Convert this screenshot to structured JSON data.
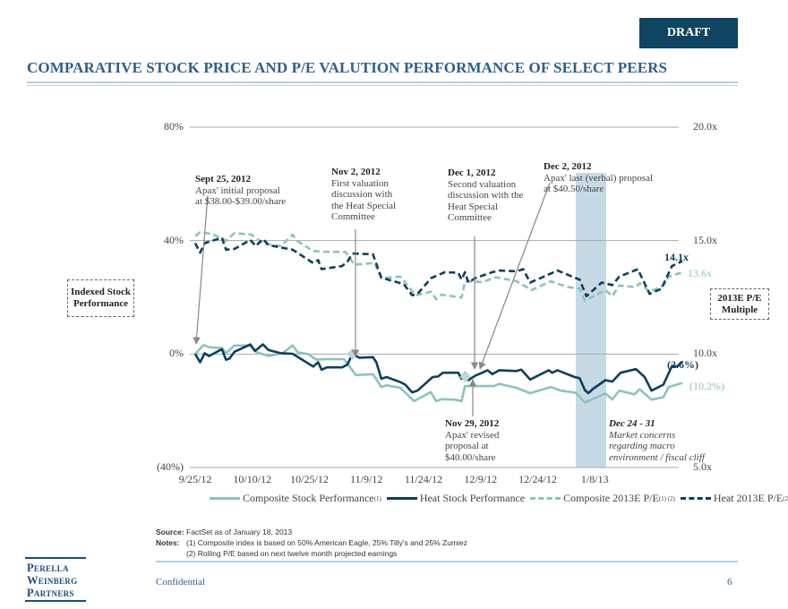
{
  "header": {
    "draft_label": "DRAFT",
    "title": "COMPARATIVE STOCK PRICE AND P/E VALUTION PERFORMANCE OF SELECT PEERS"
  },
  "colors": {
    "heat": "#0d3f5c",
    "composite": "#8cc3be",
    "shade": "#c6dae5",
    "title": "#2e5f8e"
  },
  "chart_data": {
    "type": "line",
    "xlabel": "",
    "left_ylabel": "Indexed Stock Performance",
    "right_ylabel": "2013E P/E Multiple",
    "x_units": "days since 9/25/12 (approx.)",
    "xlim": [
      0,
      128
    ],
    "x_ticks": [
      {
        "x": 0,
        "label": "9/25/12"
      },
      {
        "x": 15,
        "label": "10/10/12"
      },
      {
        "x": 30,
        "label": "10/25/12"
      },
      {
        "x": 45,
        "label": "11/9/12"
      },
      {
        "x": 60,
        "label": "11/24/12"
      },
      {
        "x": 75,
        "label": "12/9/12"
      },
      {
        "x": 90,
        "label": "12/24/12"
      },
      {
        "x": 105,
        "label": "1/8/13"
      }
    ],
    "left_axis": {
      "ylim": [
        -40,
        80
      ],
      "ticks": [
        {
          "v": 80,
          "label": "80%"
        },
        {
          "v": 40,
          "label": "40%"
        },
        {
          "v": 0,
          "label": "0%"
        },
        {
          "v": -40,
          "label": "(40%)"
        }
      ]
    },
    "right_axis": {
      "ylim": [
        5,
        20
      ],
      "ticks": [
        {
          "v": 20,
          "label": "20.0x"
        },
        {
          "v": 15,
          "label": "15.0x"
        },
        {
          "v": 10,
          "label": "10.0x"
        },
        {
          "v": 5,
          "label": "5.0x"
        }
      ]
    },
    "grid": "horizontal",
    "shaded_period": {
      "x": [
        100,
        108
      ],
      "label": "Dec 24 - 31"
    },
    "series": [
      {
        "name": "Composite Stock Performance",
        "axis": "left",
        "style": "solid",
        "color": "#8cc3be",
        "end_label": "(10.2%)",
        "points": [
          [
            0,
            0
          ],
          [
            2.2,
            3.2
          ],
          [
            3.6,
            2.4
          ],
          [
            7,
            2.1
          ],
          [
            8.1,
            0.3
          ],
          [
            10.3,
            3
          ],
          [
            14.4,
            3
          ],
          [
            16.2,
            0.6
          ],
          [
            19.3,
            -0.7
          ],
          [
            22.9,
            0.3
          ],
          [
            25.6,
            3
          ],
          [
            26.9,
            0.6
          ],
          [
            29.6,
            0
          ],
          [
            31.9,
            -2
          ],
          [
            34.1,
            -1.8
          ],
          [
            39.1,
            -1.8
          ],
          [
            42.2,
            -7.4
          ],
          [
            46.7,
            -7.1
          ],
          [
            48.9,
            -11.6
          ],
          [
            50.3,
            -11
          ],
          [
            53.9,
            -11.9
          ],
          [
            57.5,
            -16.6
          ],
          [
            61.9,
            -13.4
          ],
          [
            63.3,
            -16.6
          ],
          [
            64.7,
            -15.9
          ],
          [
            68.3,
            -16.1
          ],
          [
            70,
            -16.6
          ],
          [
            70.9,
            -11.3
          ],
          [
            72.7,
            -11.3
          ],
          [
            78.5,
            -11.3
          ],
          [
            79.9,
            -10.5
          ],
          [
            84.4,
            -11.9
          ],
          [
            88,
            -13.8
          ],
          [
            93.4,
            -11.6
          ],
          [
            96.1,
            -12.9
          ],
          [
            100.1,
            -13.7
          ],
          [
            102.4,
            -17.1
          ],
          [
            107.8,
            -13.9
          ],
          [
            109.6,
            -16
          ],
          [
            111.4,
            -12.9
          ],
          [
            115.4,
            -14.2
          ],
          [
            116.8,
            -12.4
          ],
          [
            119.9,
            -16.1
          ],
          [
            123,
            -15.2
          ],
          [
            124.4,
            -11.6
          ],
          [
            128,
            -10.2
          ]
        ]
      },
      {
        "name": "Heat Stock Performance",
        "axis": "left",
        "style": "solid",
        "color": "#0d3f5c",
        "end_label": "(2.6%)",
        "points": [
          [
            0,
            0
          ],
          [
            1.3,
            -2.9
          ],
          [
            2.5,
            0.3
          ],
          [
            3.6,
            -0.7
          ],
          [
            7,
            1.7
          ],
          [
            8.1,
            -2
          ],
          [
            9,
            -1.6
          ],
          [
            10.3,
            0.8
          ],
          [
            14.5,
            3.4
          ],
          [
            15.7,
            1.1
          ],
          [
            17.8,
            3.4
          ],
          [
            19.3,
            1.4
          ],
          [
            22.5,
            0.3
          ],
          [
            25.6,
            0.1
          ],
          [
            31,
            -4.4
          ],
          [
            32.3,
            -2.9
          ],
          [
            33.2,
            -5.5
          ],
          [
            34.6,
            -4.7
          ],
          [
            38.6,
            -4.7
          ],
          [
            40,
            -3.7
          ],
          [
            41.3,
            0
          ],
          [
            43.1,
            -1.3
          ],
          [
            46.7,
            -1.1
          ],
          [
            47.6,
            -2.9
          ],
          [
            48.9,
            -8.7
          ],
          [
            50.3,
            -8.1
          ],
          [
            53.9,
            -9.9
          ],
          [
            55.2,
            -10.8
          ],
          [
            57,
            -13.5
          ],
          [
            58.4,
            -12.9
          ],
          [
            62.4,
            -8.1
          ],
          [
            63.8,
            -7.9
          ],
          [
            65.1,
            -6.6
          ],
          [
            69.1,
            -6.6
          ],
          [
            70,
            -8.7
          ],
          [
            70.9,
            -6.6
          ],
          [
            71.8,
            -9.2
          ],
          [
            73.6,
            -7.6
          ],
          [
            75.4,
            -6.6
          ],
          [
            76.8,
            -5.7
          ],
          [
            78.1,
            -7.1
          ],
          [
            79.9,
            -5.7
          ],
          [
            84.4,
            -6
          ],
          [
            85.7,
            -5.5
          ],
          [
            88,
            -9
          ],
          [
            91.6,
            -6.6
          ],
          [
            92.9,
            -5.7
          ],
          [
            93.8,
            -6.6
          ],
          [
            95.2,
            -5.7
          ],
          [
            99.7,
            -8.1
          ],
          [
            101,
            -8.5
          ],
          [
            102.4,
            -12.7
          ],
          [
            103.3,
            -13.8
          ],
          [
            104.6,
            -12.2
          ],
          [
            107.8,
            -9.2
          ],
          [
            109.6,
            -9.7
          ],
          [
            111.8,
            -6.6
          ],
          [
            115.8,
            -5.3
          ],
          [
            118.1,
            -8.1
          ],
          [
            119.9,
            -12.9
          ],
          [
            123,
            -10.8
          ],
          [
            125.3,
            -4.2
          ],
          [
            126.6,
            -4.4
          ],
          [
            128,
            -2.6
          ]
        ]
      },
      {
        "name": "Composite 2013E P/E",
        "axis": "right",
        "style": "dashed",
        "color": "#8cc3be",
        "end_label": "13.6x",
        "points": [
          [
            0,
            15.2
          ],
          [
            1.3,
            15.37
          ],
          [
            4.5,
            15.29
          ],
          [
            8.1,
            15
          ],
          [
            10.3,
            15.33
          ],
          [
            14.8,
            15.26
          ],
          [
            17.9,
            14.87
          ],
          [
            22.5,
            14.76
          ],
          [
            25.6,
            15.26
          ],
          [
            26.9,
            14.97
          ],
          [
            31,
            14.54
          ],
          [
            34.1,
            14.51
          ],
          [
            39.5,
            14.5
          ],
          [
            41.8,
            13.94
          ],
          [
            47.1,
            14.01
          ],
          [
            48.9,
            13.35
          ],
          [
            53.9,
            13.41
          ],
          [
            57.9,
            12.59
          ],
          [
            62,
            12.75
          ],
          [
            63.3,
            12.42
          ],
          [
            64.7,
            12.62
          ],
          [
            70,
            12.49
          ],
          [
            70.9,
            13.21
          ],
          [
            75.4,
            13.17
          ],
          [
            79,
            13.39
          ],
          [
            84.4,
            13.21
          ],
          [
            88.4,
            12.82
          ],
          [
            93.4,
            13.21
          ],
          [
            97.9,
            12.95
          ],
          [
            101,
            12.88
          ],
          [
            102.4,
            12.35
          ],
          [
            107.8,
            12.82
          ],
          [
            109.6,
            12.55
          ],
          [
            111.4,
            13.02
          ],
          [
            115.8,
            12.95
          ],
          [
            116.8,
            13.12
          ],
          [
            119.4,
            12.75
          ],
          [
            123,
            13.02
          ],
          [
            124.4,
            13.41
          ],
          [
            128,
            13.6
          ]
        ]
      },
      {
        "name": "Heat 2013E P/E",
        "axis": "right",
        "style": "dashed",
        "color": "#0d3f5c",
        "end_label": "14.1x",
        "points": [
          [
            0,
            14.89
          ],
          [
            1.3,
            14.47
          ],
          [
            2.5,
            14.89
          ],
          [
            7,
            15.13
          ],
          [
            8.1,
            14.6
          ],
          [
            10.3,
            14.63
          ],
          [
            14.5,
            15.03
          ],
          [
            15.9,
            14.76
          ],
          [
            17.8,
            15.07
          ],
          [
            19.3,
            14.8
          ],
          [
            25.6,
            14.6
          ],
          [
            31,
            14.01
          ],
          [
            32.3,
            14.14
          ],
          [
            33.2,
            13.74
          ],
          [
            38.6,
            13.88
          ],
          [
            40,
            14.07
          ],
          [
            41.3,
            14.43
          ],
          [
            46.7,
            14.4
          ],
          [
            48.9,
            13.37
          ],
          [
            54.8,
            13.08
          ],
          [
            57,
            12.59
          ],
          [
            58.4,
            12.65
          ],
          [
            62,
            13.35
          ],
          [
            65.6,
            13.61
          ],
          [
            69.1,
            13.58
          ],
          [
            70,
            13.28
          ],
          [
            70.9,
            13.61
          ],
          [
            71.8,
            13.15
          ],
          [
            73.6,
            13.35
          ],
          [
            78.1,
            13.61
          ],
          [
            79.9,
            13.68
          ],
          [
            84.4,
            13.65
          ],
          [
            86.2,
            13.74
          ],
          [
            88,
            13.15
          ],
          [
            91.6,
            13.41
          ],
          [
            95.2,
            13.68
          ],
          [
            101,
            13.28
          ],
          [
            102.8,
            12.55
          ],
          [
            106.8,
            13.15
          ],
          [
            109.6,
            13.04
          ],
          [
            111.4,
            13.41
          ],
          [
            116.3,
            13.74
          ],
          [
            119.4,
            12.65
          ],
          [
            122.5,
            12.88
          ],
          [
            125.3,
            13.88
          ],
          [
            128,
            14.1
          ]
        ]
      }
    ],
    "markers": [
      {
        "x": 41.3,
        "y": 0
      },
      {
        "x": 71,
        "y": -8
      }
    ],
    "legend": [
      {
        "label": "Composite Stock Performance",
        "sup": "(1)"
      },
      {
        "label": "Heat Stock Performance",
        "sup": ""
      },
      {
        "label": "Composite 2013E P/E",
        "sup": "(1) (2)"
      },
      {
        "label": "Heat 2013E P/E",
        "sup": "(2)"
      }
    ],
    "annotations": [
      {
        "date": "Sept 25, 2012",
        "lines": [
          "Apax' initial proposal",
          "at $38.00-$39.00/share"
        ]
      },
      {
        "date": "Nov 2, 2012",
        "lines": [
          "First valuation",
          "discussion with",
          "the Heat Special",
          "Committee"
        ]
      },
      {
        "date": "Dec 1, 2012",
        "lines": [
          "Second valuation",
          "discussion with the",
          "Heat Special",
          "Committee"
        ]
      },
      {
        "date": "Dec 2, 2012",
        "lines": [
          "Apax' last (verbal) proposal",
          "at $40.50/share"
        ]
      },
      {
        "date": "Nov 29, 2012",
        "lines": [
          "Apax' revised",
          "proposal at",
          "$40.00/share"
        ]
      },
      {
        "date": "Dec  24 - 31",
        "lines": [
          "Market concerns",
          "regarding macro",
          "environment / fiscal cliff"
        ]
      }
    ]
  },
  "notes": {
    "source_key": "Source:",
    "source": "FactSet as of January 18, 2013",
    "notes_key": "Notes:",
    "note1": "(1) Composite index is based on 50% American Eagle, 25% Tilly's and 25% Zumiez",
    "note2": "(2) Rolling P/E based on next twelve month projected earnings"
  },
  "footer": {
    "logo": "Perella Weinberg Partners",
    "logo_lines": [
      "Perella",
      "Weinberg",
      "Partners"
    ],
    "confidential": "Confidential",
    "page": "6"
  }
}
